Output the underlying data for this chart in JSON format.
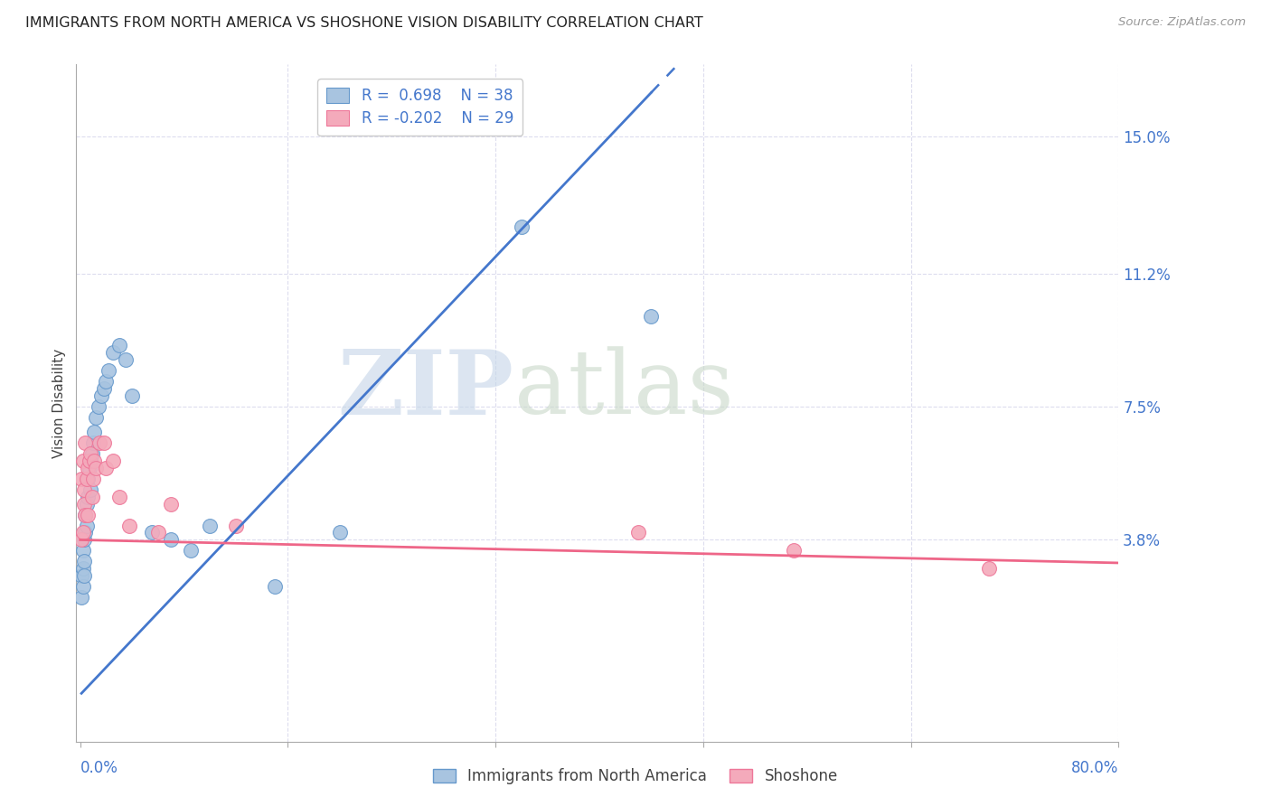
{
  "title": "IMMIGRANTS FROM NORTH AMERICA VS SHOSHONE VISION DISABILITY CORRELATION CHART",
  "source": "Source: ZipAtlas.com",
  "ylabel": "Vision Disability",
  "yticks": [
    0.0,
    0.038,
    0.075,
    0.112,
    0.15
  ],
  "ytick_labels": [
    "",
    "3.8%",
    "7.5%",
    "11.2%",
    "15.0%"
  ],
  "xlim": [
    -0.003,
    0.8
  ],
  "ylim": [
    -0.018,
    0.17
  ],
  "legend_blue_r": "R =  0.698",
  "legend_blue_n": "N = 38",
  "legend_pink_r": "R = -0.202",
  "legend_pink_n": "N = 29",
  "blue_color": "#A8C4E0",
  "pink_color": "#F4AABB",
  "blue_edge_color": "#6699CC",
  "pink_edge_color": "#EE7799",
  "blue_line_color": "#4477CC",
  "pink_line_color": "#EE6688",
  "watermark_zip": "ZIP",
  "watermark_atlas": "atlas",
  "watermark_color_zip": "#C5D5E8",
  "watermark_color_atlas": "#C8D8C8",
  "grid_color": "#DDDDEE",
  "blue_scatter_x": [
    0.001,
    0.001,
    0.002,
    0.002,
    0.002,
    0.003,
    0.003,
    0.003,
    0.004,
    0.004,
    0.005,
    0.005,
    0.006,
    0.006,
    0.007,
    0.008,
    0.008,
    0.009,
    0.01,
    0.011,
    0.012,
    0.014,
    0.016,
    0.018,
    0.02,
    0.022,
    0.025,
    0.03,
    0.035,
    0.04,
    0.055,
    0.07,
    0.085,
    0.1,
    0.15,
    0.2,
    0.34,
    0.44
  ],
  "blue_scatter_y": [
    0.028,
    0.022,
    0.03,
    0.025,
    0.035,
    0.028,
    0.032,
    0.038,
    0.04,
    0.045,
    0.042,
    0.048,
    0.05,
    0.055,
    0.058,
    0.052,
    0.06,
    0.062,
    0.065,
    0.068,
    0.072,
    0.075,
    0.078,
    0.08,
    0.082,
    0.085,
    0.09,
    0.092,
    0.088,
    0.078,
    0.04,
    0.038,
    0.035,
    0.042,
    0.025,
    0.04,
    0.125,
    0.1
  ],
  "pink_scatter_x": [
    0.001,
    0.001,
    0.002,
    0.002,
    0.003,
    0.003,
    0.004,
    0.004,
    0.005,
    0.006,
    0.006,
    0.007,
    0.008,
    0.009,
    0.01,
    0.011,
    0.012,
    0.015,
    0.018,
    0.02,
    0.025,
    0.03,
    0.038,
    0.06,
    0.07,
    0.12,
    0.43,
    0.55,
    0.7
  ],
  "pink_scatter_y": [
    0.038,
    0.055,
    0.04,
    0.06,
    0.048,
    0.052,
    0.045,
    0.065,
    0.055,
    0.045,
    0.058,
    0.06,
    0.062,
    0.05,
    0.055,
    0.06,
    0.058,
    0.065,
    0.065,
    0.058,
    0.06,
    0.05,
    0.042,
    0.04,
    0.048,
    0.042,
    0.04,
    0.035,
    0.03
  ],
  "blue_line_x_start": 0.001,
  "blue_line_x_solid_end": 0.44,
  "blue_line_x_dash_end": 0.6,
  "pink_line_x_start": 0.0,
  "pink_line_x_end": 0.8
}
